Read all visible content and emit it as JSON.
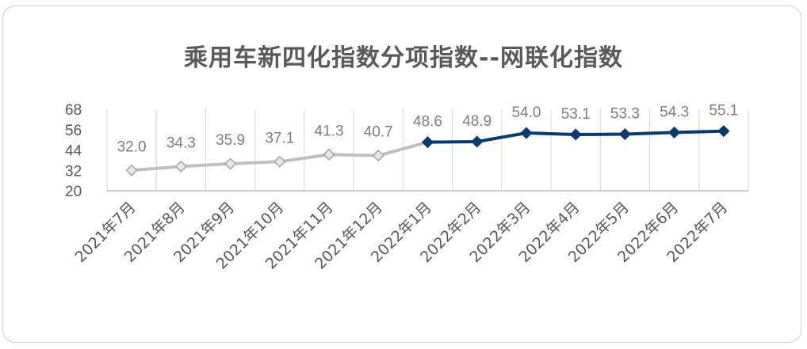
{
  "chart_data": {
    "type": "line",
    "title": "乘用车新四化指数分项指数--网联化指数",
    "xlabel": "",
    "ylabel": "",
    "categories": [
      "2021年7月",
      "2021年8月",
      "2021年9月",
      "2021年10月",
      "2021年11月",
      "2021年12月",
      "2022年1月",
      "2022年2月",
      "2022年3月",
      "2022年4月",
      "2022年5月",
      "2022年6月",
      "2022年7月"
    ],
    "values": [
      32.0,
      34.3,
      35.9,
      37.1,
      41.3,
      40.7,
      48.6,
      48.9,
      54.0,
      53.1,
      53.3,
      54.3,
      55.1
    ],
    "value_labels": [
      "32.0",
      "34.3",
      "35.9",
      "37.1",
      "41.3",
      "40.7",
      "48.6",
      "48.9",
      "54.0",
      "53.1",
      "53.3",
      "54.3",
      "55.1"
    ],
    "ylim": [
      20,
      68
    ],
    "yticks": [
      "20",
      "32",
      "44",
      "56",
      "68"
    ],
    "grid": "vertical",
    "split_index": 6,
    "colors": {
      "early": "#bfbfbf",
      "early_marker_fill": "#e8e8e8",
      "late": "#0b3a6b",
      "grid": "#d9d9d9",
      "axis": "#bfbfbf"
    }
  }
}
